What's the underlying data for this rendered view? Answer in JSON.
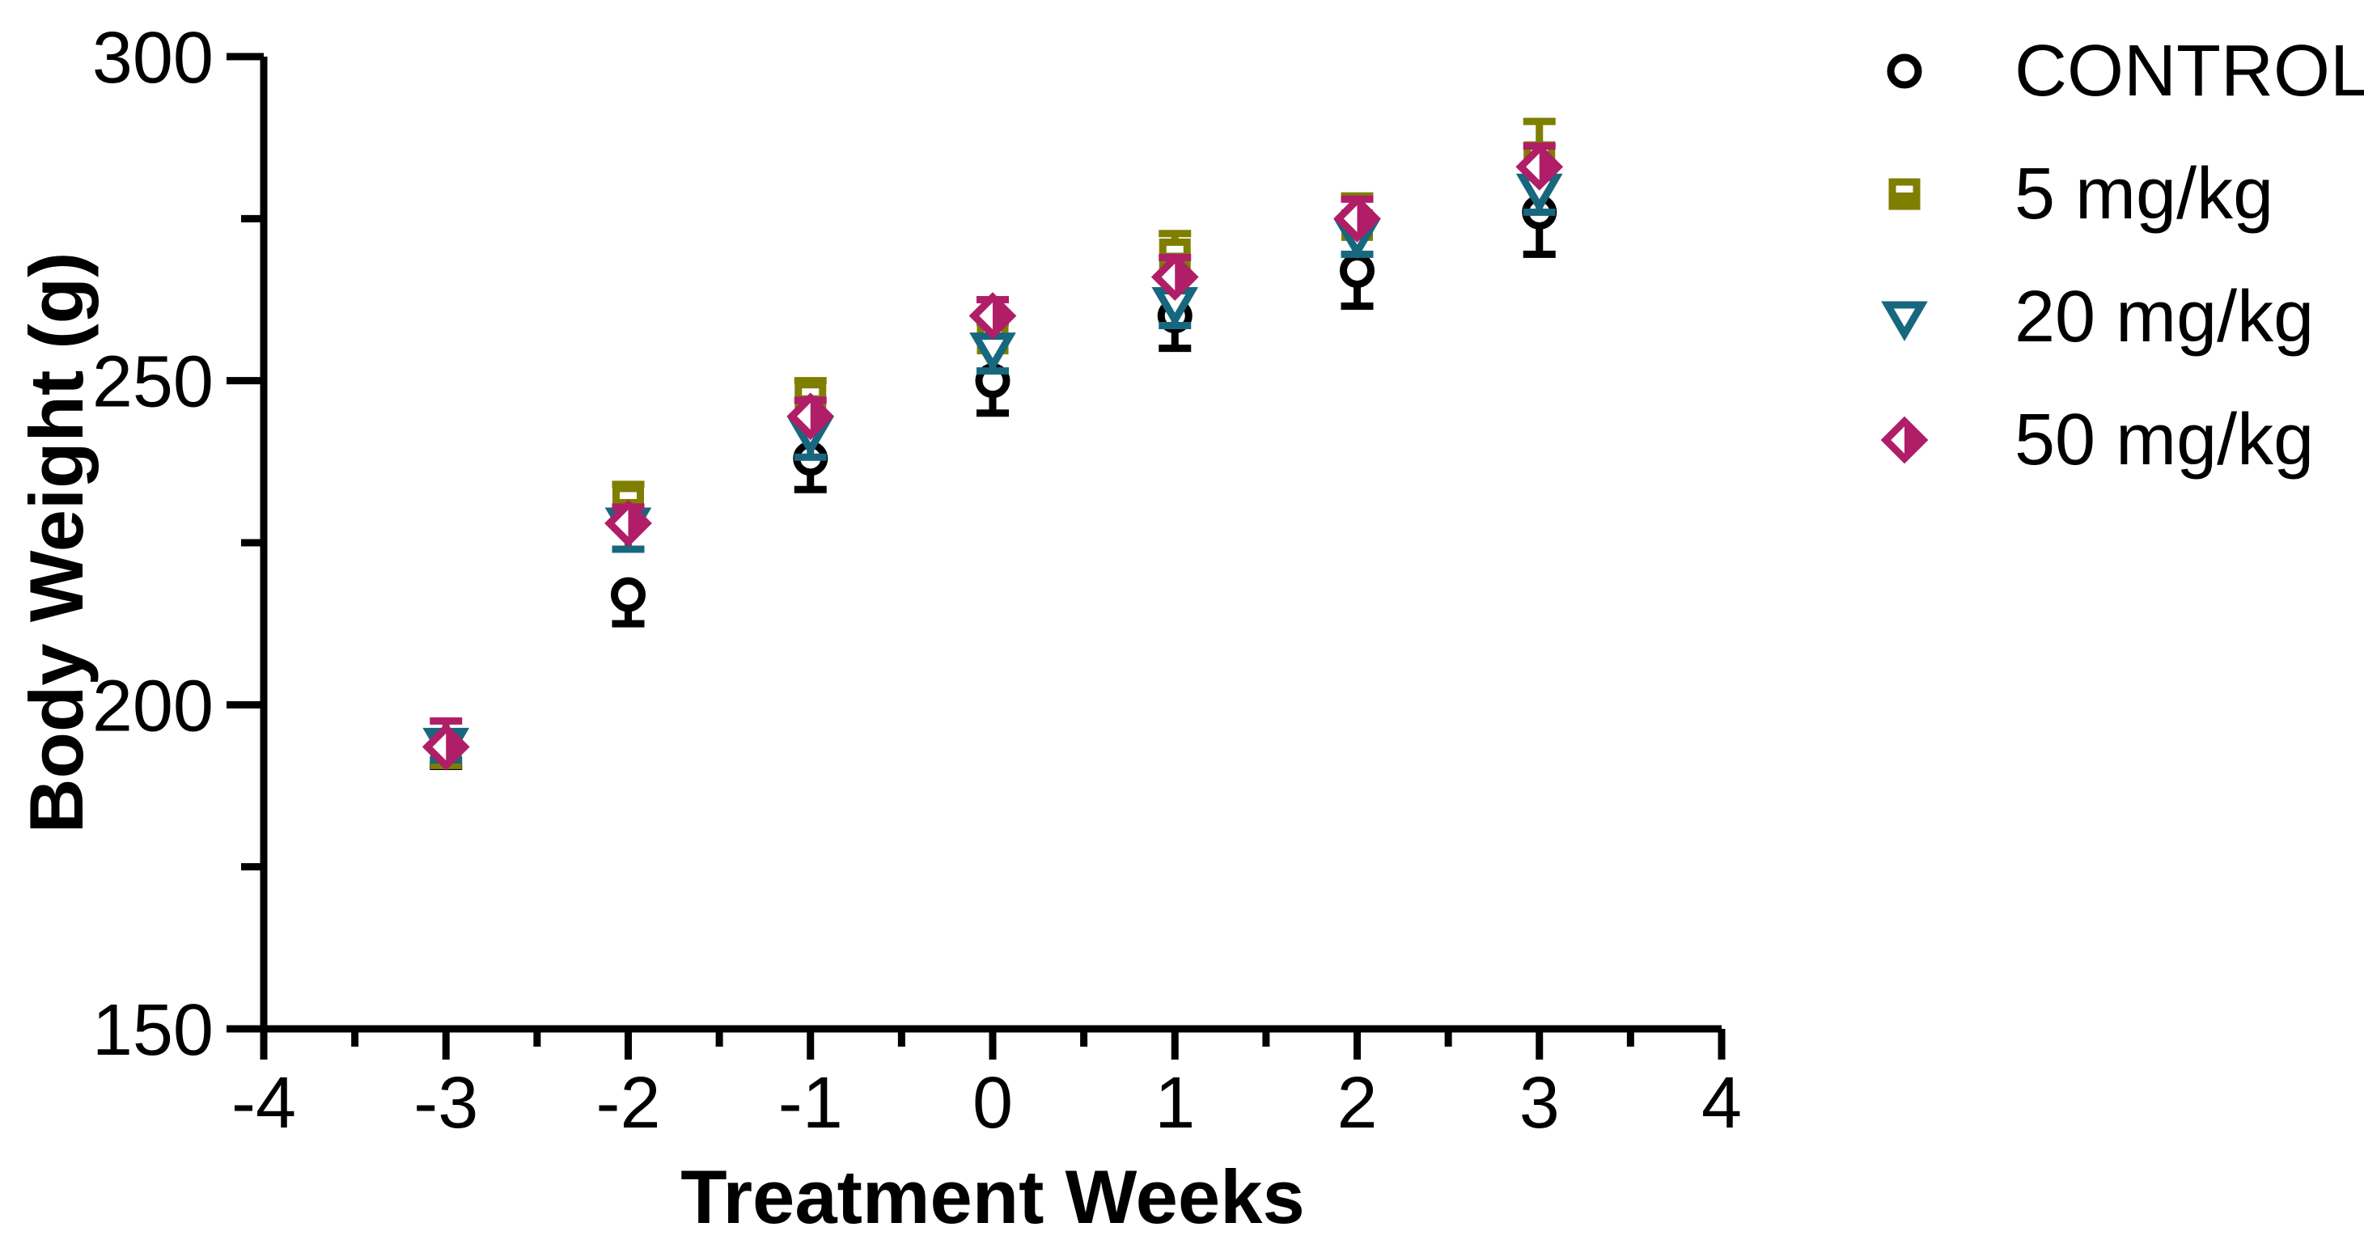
{
  "figure": {
    "background": "#ffffff",
    "text_color": "#000000"
  },
  "chart_data": {
    "type": "scatter",
    "title": "",
    "xlabel": "Treatment Weeks",
    "ylabel": "Body Weight (g)",
    "xlim": [
      -4,
      4
    ],
    "ylim": [
      150,
      300
    ],
    "grid": false,
    "legend_position": "top-right-outside",
    "x_major_ticks": [
      -4,
      -3,
      -2,
      -1,
      0,
      1,
      2,
      3,
      4
    ],
    "x_minor_ticks": [
      -3.5,
      -2.5,
      -1.5,
      -0.5,
      0.5,
      1.5,
      2.5,
      3.5
    ],
    "x_tick_labels": [
      "-4",
      "-3",
      "-2",
      "-1",
      "0",
      "1",
      "2",
      "3",
      "4"
    ],
    "y_major_ticks": [
      150,
      200,
      250,
      300
    ],
    "y_minor_ticks": [
      175,
      225,
      275
    ],
    "y_tick_labels": [
      "150",
      "200",
      "250",
      "300"
    ],
    "x": [
      -3,
      -2,
      -1,
      0,
      1,
      2,
      3
    ],
    "series": [
      {
        "name": "CONTROL",
        "marker": "circle-open",
        "color": "#000000",
        "error_direction": "down",
        "values": [
          193.5,
          217,
          238,
          250,
          260,
          267,
          276
        ],
        "errors": [
          3,
          4.5,
          4.8,
          5,
          5,
          5.5,
          6.5
        ]
      },
      {
        "name": "5 mg/kg",
        "marker": "square-half-bottom",
        "color": "#7E7E00",
        "error_direction": "up",
        "values": [
          192.5,
          231.5,
          247.5,
          256.5,
          269.5,
          274,
          284.5
        ],
        "errors": [
          3,
          2.5,
          2.5,
          2.5,
          3.2,
          4.5,
          5.5
        ]
      },
      {
        "name": "20 mg/kg",
        "marker": "triangle-down-open",
        "color": "#17677E",
        "error_direction": "down",
        "values": [
          194,
          228,
          242,
          255,
          262,
          272.5,
          279.5
        ],
        "errors": [
          2.5,
          4,
          3.8,
          3.5,
          3.5,
          3,
          3.5
        ]
      },
      {
        "name": "50 mg/kg",
        "marker": "diamond-half-right",
        "color": "#B01E67",
        "error_direction": "up",
        "values": [
          193.5,
          228,
          244.5,
          260,
          266,
          275,
          283
        ],
        "errors": [
          4,
          2.5,
          2.5,
          2.5,
          3,
          3,
          3.2
        ]
      }
    ]
  }
}
